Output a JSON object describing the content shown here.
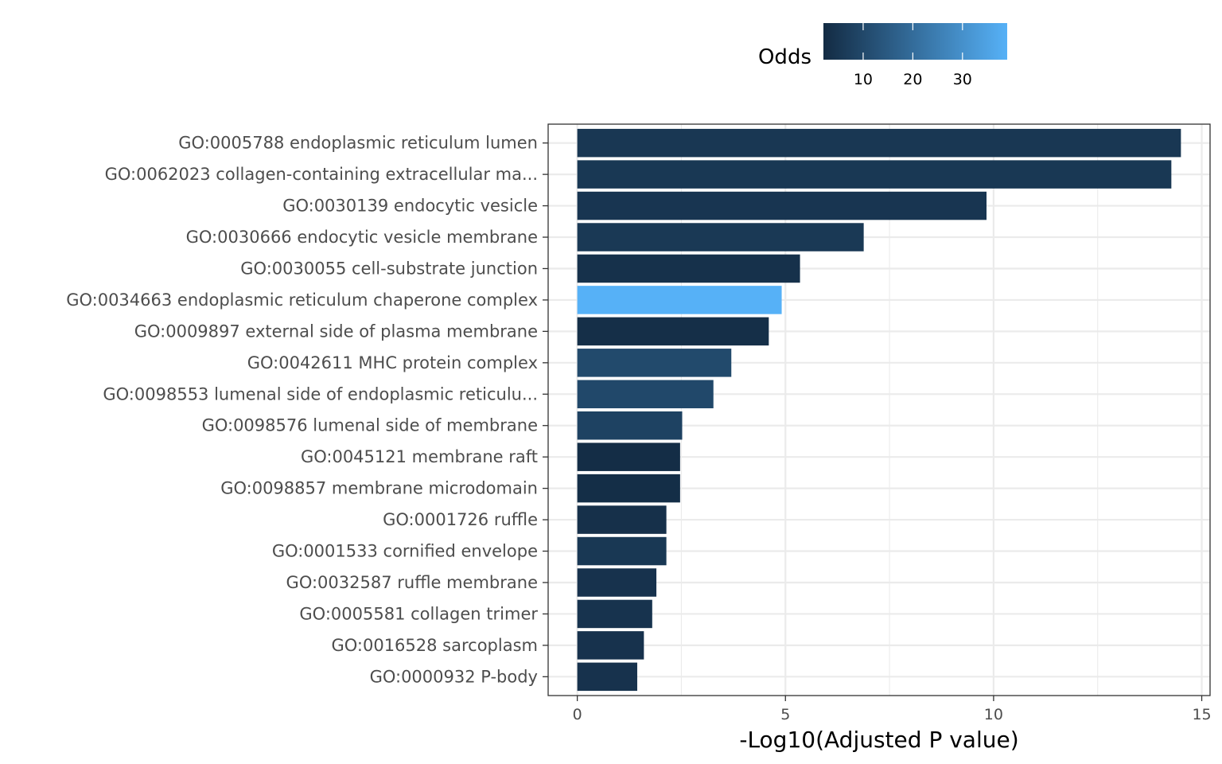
{
  "chart_data": {
    "type": "bar",
    "orientation": "horizontal",
    "xlabel": "-Log10(Adjusted P value)",
    "ylabel": "",
    "xlim": [
      -0.7,
      15.2
    ],
    "xticks": [
      0,
      5,
      10,
      15
    ],
    "grid": true,
    "legend": {
      "title": "Odds",
      "placement": "top",
      "type": "colorbar",
      "ticks": [
        10,
        20,
        30
      ],
      "range": [
        2,
        39
      ],
      "color_low": "#132B43",
      "color_high": "#56B1F7"
    },
    "categories": [
      "GO:0005788 endoplasmic reticulum lumen",
      "GO:0062023 collagen-containing extracellular ma...",
      "GO:0030139 endocytic vesicle",
      "GO:0030666 endocytic vesicle membrane",
      "GO:0030055 cell-substrate junction",
      "GO:0034663 endoplasmic reticulum chaperone complex",
      "GO:0009897 external side of plasma membrane",
      "GO:0042611 MHC protein complex",
      "GO:0098553 lumenal side of endoplasmic reticulu...",
      "GO:0098576 lumenal side of membrane",
      "GO:0045121 membrane raft",
      "GO:0098857 membrane microdomain",
      "GO:0001726 ruffle",
      "GO:0001533 cornified envelope",
      "GO:0032587 ruffle membrane",
      "GO:0005581 collagen trimer",
      "GO:0016528 sarcoplasm",
      "GO:0000932 P-body"
    ],
    "values": [
      14.5,
      14.27,
      9.83,
      6.88,
      5.35,
      4.91,
      4.6,
      3.7,
      3.27,
      2.52,
      2.47,
      2.47,
      2.14,
      2.14,
      1.9,
      1.8,
      1.6,
      1.44
    ],
    "odds": [
      5.2,
      5.5,
      4.8,
      5.8,
      3.6,
      39,
      3.0,
      10.5,
      10.0,
      8.3,
      2.6,
      2.8,
      3.5,
      5.5,
      4.0,
      4.2,
      4.0,
      4.0
    ]
  }
}
